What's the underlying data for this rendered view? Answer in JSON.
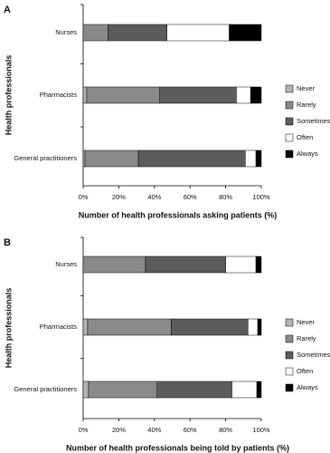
{
  "chart_data": [
    {
      "type": "stacked-bar",
      "panel": "A",
      "xlabel": "Number of health professionals asking patients (%)",
      "ylabel": "Health professionals",
      "categories": [
        "Nurses",
        "Pharmacists",
        "General practitioners"
      ],
      "series": [
        {
          "name": "Never",
          "color": "#b3b3b3",
          "values": [
            0,
            2,
            1
          ]
        },
        {
          "name": "Rarely",
          "color": "#8a8a8a",
          "values": [
            14,
            41,
            30
          ]
        },
        {
          "name": "Sometimes",
          "color": "#5c5c5c",
          "values": [
            33,
            43,
            60
          ]
        },
        {
          "name": "Often",
          "color": "#ffffff",
          "values": [
            35,
            8,
            6
          ]
        },
        {
          "name": "Always",
          "color": "#000000",
          "values": [
            18,
            6,
            3
          ]
        }
      ],
      "xlim": [
        0,
        100
      ],
      "xticks": [
        {
          "value": 0,
          "label": "0%"
        },
        {
          "value": 20,
          "label": "20%"
        },
        {
          "value": 40,
          "label": "40%"
        },
        {
          "value": 60,
          "label": "60%"
        },
        {
          "value": 80,
          "label": "80%"
        },
        {
          "value": 100,
          "label": "100%"
        }
      ]
    },
    {
      "type": "stacked-bar",
      "panel": "B",
      "xlabel": "Number of health professionals being told by patients (%)",
      "ylabel": "Health professionals",
      "categories": [
        "Nurses",
        "Pharmacists",
        "General practitioners"
      ],
      "series": [
        {
          "name": "Never",
          "color": "#b3b3b3",
          "values": [
            0,
            2.5,
            3
          ]
        },
        {
          "name": "Rarely",
          "color": "#8a8a8a",
          "values": [
            35,
            47,
            38.5
          ]
        },
        {
          "name": "Sometimes",
          "color": "#5c5c5c",
          "values": [
            45,
            43,
            42
          ]
        },
        {
          "name": "Often",
          "color": "#ffffff",
          "values": [
            17,
            5.5,
            14
          ]
        },
        {
          "name": "Always",
          "color": "#000000",
          "values": [
            3,
            2,
            2.5
          ]
        }
      ],
      "xlim": [
        0,
        100
      ],
      "xticks": [
        {
          "value": 0,
          "label": "0%"
        },
        {
          "value": 20,
          "label": "20%"
        },
        {
          "value": 40,
          "label": "40%"
        },
        {
          "value": 60,
          "label": "60%"
        },
        {
          "value": 80,
          "label": "80%"
        },
        {
          "value": 100,
          "label": "100%"
        }
      ]
    }
  ]
}
